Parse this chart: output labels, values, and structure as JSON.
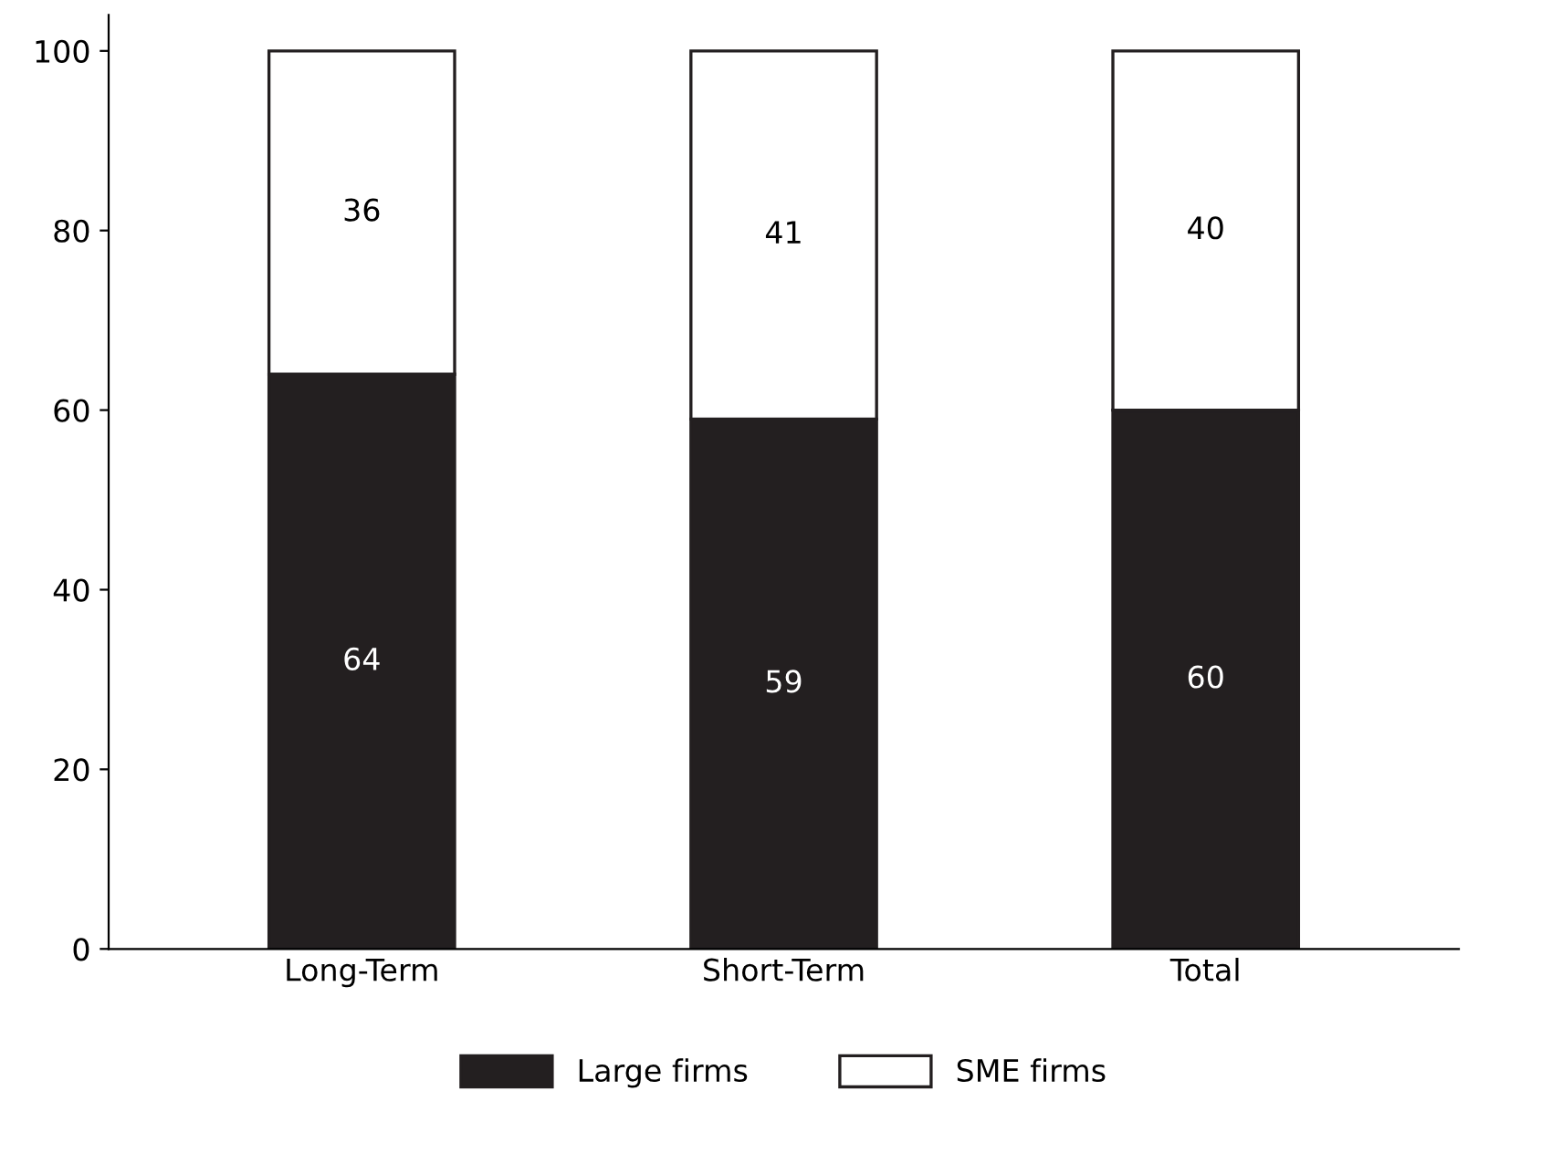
{
  "chart_data": {
    "type": "bar",
    "stacked": true,
    "categories": [
      "Long-Term",
      "Short-Term",
      "Total"
    ],
    "series": [
      {
        "name": "Large firms",
        "color": "#231f20",
        "values": [
          64,
          59,
          60
        ]
      },
      {
        "name": "SME firms",
        "color": "#ffffff",
        "values": [
          36,
          41,
          40
        ]
      }
    ],
    "ylim": [
      0,
      104
    ],
    "yticks": [
      0,
      20,
      40,
      60,
      80,
      100
    ],
    "data_labels": true,
    "legend": "bottom",
    "grid": false
  }
}
